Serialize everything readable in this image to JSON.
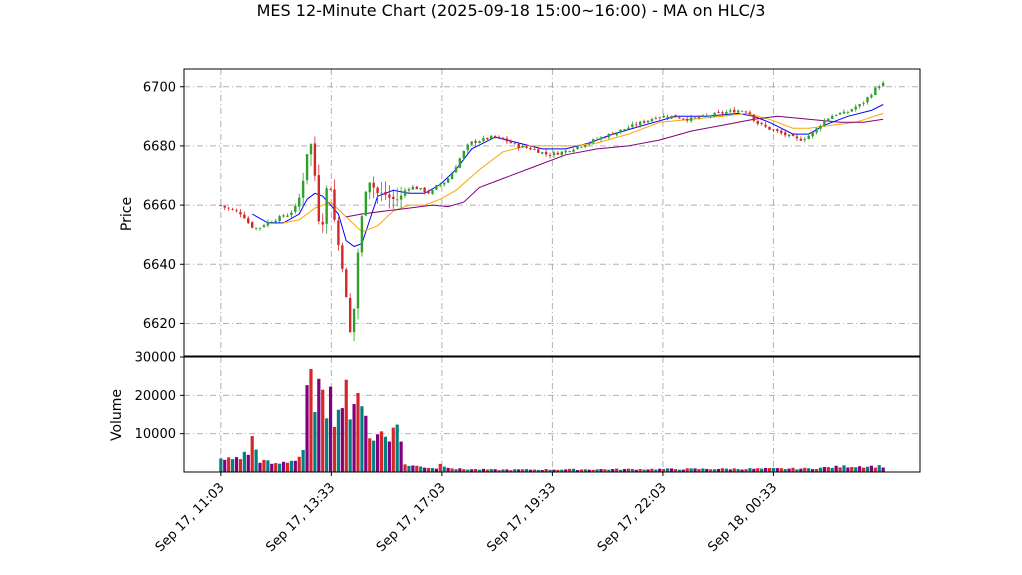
{
  "chart_data": {
    "type": "candlestick",
    "title": "MES 12-Minute Chart (2025-09-18 15:00~16:00) - MA on HLC/3",
    "price_panel": {
      "ylabel": "Price",
      "ylim": [
        6609,
        6706
      ],
      "yticks": [
        "6620",
        "6640",
        "6660",
        "6680",
        "6700"
      ],
      "grid": true,
      "colors": {
        "up": "#2ca02c",
        "down": "#d62728",
        "ma_fast": "#0000ff",
        "ma_mid": "#ffa500",
        "ma_slow": "#800080"
      },
      "price_path": [
        [
          0,
          6660
        ],
        [
          4,
          6658
        ],
        [
          6,
          6657
        ],
        [
          8,
          6653
        ],
        [
          10,
          6652
        ],
        [
          12,
          6654
        ],
        [
          14,
          6655
        ],
        [
          16,
          6656
        ],
        [
          18,
          6657
        ],
        [
          20,
          6660
        ],
        [
          21,
          6665
        ],
        [
          22,
          6672
        ],
        [
          23,
          6683
        ],
        [
          24,
          6678
        ],
        [
          25,
          6662
        ],
        [
          26,
          6648
        ],
        [
          27,
          6660
        ],
        [
          28,
          6671
        ],
        [
          29,
          6660
        ],
        [
          30,
          6650
        ],
        [
          31,
          6643
        ],
        [
          32,
          6635
        ],
        [
          33,
          6622
        ],
        [
          34,
          6612
        ],
        [
          35,
          6638
        ],
        [
          36,
          6650
        ],
        [
          37,
          6662
        ],
        [
          38,
          6668
        ],
        [
          39,
          6668
        ],
        [
          40,
          6664
        ],
        [
          42,
          6664
        ],
        [
          44,
          6662
        ],
        [
          46,
          6662
        ],
        [
          48,
          6666
        ],
        [
          50,
          6666
        ],
        [
          52,
          6665
        ],
        [
          54,
          6664
        ],
        [
          56,
          6667
        ],
        [
          58,
          6668
        ],
        [
          60,
          6672
        ],
        [
          62,
          6677
        ],
        [
          64,
          6681
        ],
        [
          67,
          6682
        ],
        [
          70,
          6683
        ],
        [
          73,
          6682
        ],
        [
          76,
          6680
        ],
        [
          80,
          6679
        ],
        [
          84,
          6677
        ],
        [
          88,
          6678
        ],
        [
          92,
          6680
        ],
        [
          96,
          6682
        ],
        [
          100,
          6684
        ],
        [
          104,
          6686
        ],
        [
          108,
          6688
        ],
        [
          112,
          6690
        ],
        [
          116,
          6690
        ],
        [
          120,
          6689
        ],
        [
          124,
          6690
        ],
        [
          128,
          6691
        ],
        [
          132,
          6692
        ],
        [
          135,
          6692
        ],
        [
          137,
          6688
        ],
        [
          140,
          6686
        ],
        [
          144,
          6684
        ],
        [
          148,
          6682
        ],
        [
          150,
          6683
        ],
        [
          152,
          6685
        ],
        [
          154,
          6688
        ],
        [
          156,
          6690
        ],
        [
          158,
          6691
        ],
        [
          160,
          6691
        ],
        [
          162,
          6693
        ],
        [
          164,
          6694
        ],
        [
          166,
          6697
        ],
        [
          168,
          6700
        ],
        [
          169,
          6701
        ]
      ],
      "ma_fast_path": [
        [
          8,
          6657
        ],
        [
          12,
          6654
        ],
        [
          16,
          6654
        ],
        [
          20,
          6657
        ],
        [
          22,
          6662
        ],
        [
          24,
          6664
        ],
        [
          26,
          6663
        ],
        [
          28,
          6660
        ],
        [
          30,
          6657
        ],
        [
          32,
          6648
        ],
        [
          34,
          6646
        ],
        [
          36,
          6647
        ],
        [
          38,
          6655
        ],
        [
          40,
          6663
        ],
        [
          44,
          6665
        ],
        [
          48,
          6664
        ],
        [
          52,
          6664
        ],
        [
          56,
          6667
        ],
        [
          60,
          6672
        ],
        [
          64,
          6679
        ],
        [
          70,
          6683
        ],
        [
          76,
          6681
        ],
        [
          82,
          6679
        ],
        [
          88,
          6679
        ],
        [
          94,
          6681
        ],
        [
          100,
          6684
        ],
        [
          108,
          6687
        ],
        [
          116,
          6690
        ],
        [
          124,
          6690
        ],
        [
          132,
          6691
        ],
        [
          136,
          6690
        ],
        [
          140,
          6688
        ],
        [
          146,
          6684
        ],
        [
          150,
          6684
        ],
        [
          154,
          6687
        ],
        [
          160,
          6690
        ],
        [
          166,
          6692
        ],
        [
          169,
          6694
        ]
      ],
      "ma_mid_path": [
        [
          16,
          6654
        ],
        [
          20,
          6655
        ],
        [
          24,
          6659
        ],
        [
          28,
          6661
        ],
        [
          32,
          6656
        ],
        [
          36,
          6651
        ],
        [
          40,
          6653
        ],
        [
          44,
          6658
        ],
        [
          48,
          6660
        ],
        [
          52,
          6660
        ],
        [
          56,
          6662
        ],
        [
          60,
          6665
        ],
        [
          66,
          6672
        ],
        [
          72,
          6678
        ],
        [
          78,
          6680
        ],
        [
          84,
          6680
        ],
        [
          90,
          6680
        ],
        [
          96,
          6681
        ],
        [
          104,
          6684
        ],
        [
          112,
          6688
        ],
        [
          120,
          6689
        ],
        [
          128,
          6690
        ],
        [
          134,
          6691
        ],
        [
          140,
          6689
        ],
        [
          146,
          6686
        ],
        [
          150,
          6686
        ],
        [
          156,
          6687
        ],
        [
          162,
          6688
        ],
        [
          169,
          6691
        ]
      ],
      "ma_slow_path": [
        [
          32,
          6656
        ],
        [
          36,
          6657
        ],
        [
          42,
          6658
        ],
        [
          48,
          6659
        ],
        [
          54,
          6660
        ],
        [
          58,
          6659.5
        ],
        [
          62,
          6661
        ],
        [
          66,
          6666
        ],
        [
          72,
          6669
        ],
        [
          80,
          6673
        ],
        [
          88,
          6677
        ],
        [
          96,
          6679
        ],
        [
          104,
          6680
        ],
        [
          112,
          6682
        ],
        [
          120,
          6685
        ],
        [
          128,
          6687
        ],
        [
          136,
          6689
        ],
        [
          142,
          6690
        ],
        [
          150,
          6689
        ],
        [
          158,
          6688
        ],
        [
          164,
          6688
        ],
        [
          169,
          6689
        ]
      ]
    },
    "volume_panel": {
      "ylabel": "Volume",
      "ylim": [
        0,
        30000
      ],
      "yticks": [
        "10000",
        "20000",
        "30000"
      ],
      "grid": true,
      "bar_colors": [
        "#008080",
        "#800080",
        "#d62728"
      ],
      "volume_path": [
        [
          0,
          3000
        ],
        [
          3,
          3500
        ],
        [
          5,
          4000
        ],
        [
          7,
          5000
        ],
        [
          8,
          8500
        ],
        [
          10,
          3000
        ],
        [
          14,
          2000
        ],
        [
          18,
          3000
        ],
        [
          20,
          4000
        ],
        [
          21,
          6000
        ],
        [
          22,
          23000
        ],
        [
          23,
          22000
        ],
        [
          24,
          14000
        ],
        [
          25,
          20000
        ],
        [
          26,
          28000
        ],
        [
          27,
          12000
        ],
        [
          28,
          18000
        ],
        [
          29,
          14000
        ],
        [
          30,
          20000
        ],
        [
          31,
          22000
        ],
        [
          32,
          21000
        ],
        [
          33,
          18000
        ],
        [
          34,
          18000
        ],
        [
          35,
          23000
        ],
        [
          36,
          14000
        ],
        [
          37,
          13000
        ],
        [
          38,
          11000
        ],
        [
          39,
          9000
        ],
        [
          40,
          11000
        ],
        [
          41,
          10000
        ],
        [
          42,
          9000
        ],
        [
          43,
          8000
        ],
        [
          44,
          13000
        ],
        [
          45,
          16000
        ],
        [
          46,
          7000
        ],
        [
          47,
          2000
        ],
        [
          50,
          1500
        ],
        [
          55,
          1000
        ],
        [
          56,
          2000
        ],
        [
          60,
          800
        ],
        [
          70,
          600
        ],
        [
          120,
          800
        ],
        [
          150,
          900
        ],
        [
          160,
          1500
        ],
        [
          165,
          1500
        ],
        [
          169,
          1500
        ]
      ]
    },
    "x_axis": {
      "tick_labels": [
        "Sep 17, 11:03",
        "Sep 17, 13:33",
        "Sep 17, 17:03",
        "Sep 17, 19:33",
        "Sep 17, 22:03",
        "Sep 18, 00:33"
      ],
      "tick_bars": [
        0,
        28.2,
        56.4,
        84.6,
        112.8,
        141
      ],
      "xlim": [
        -9.4,
        178.4
      ]
    }
  }
}
